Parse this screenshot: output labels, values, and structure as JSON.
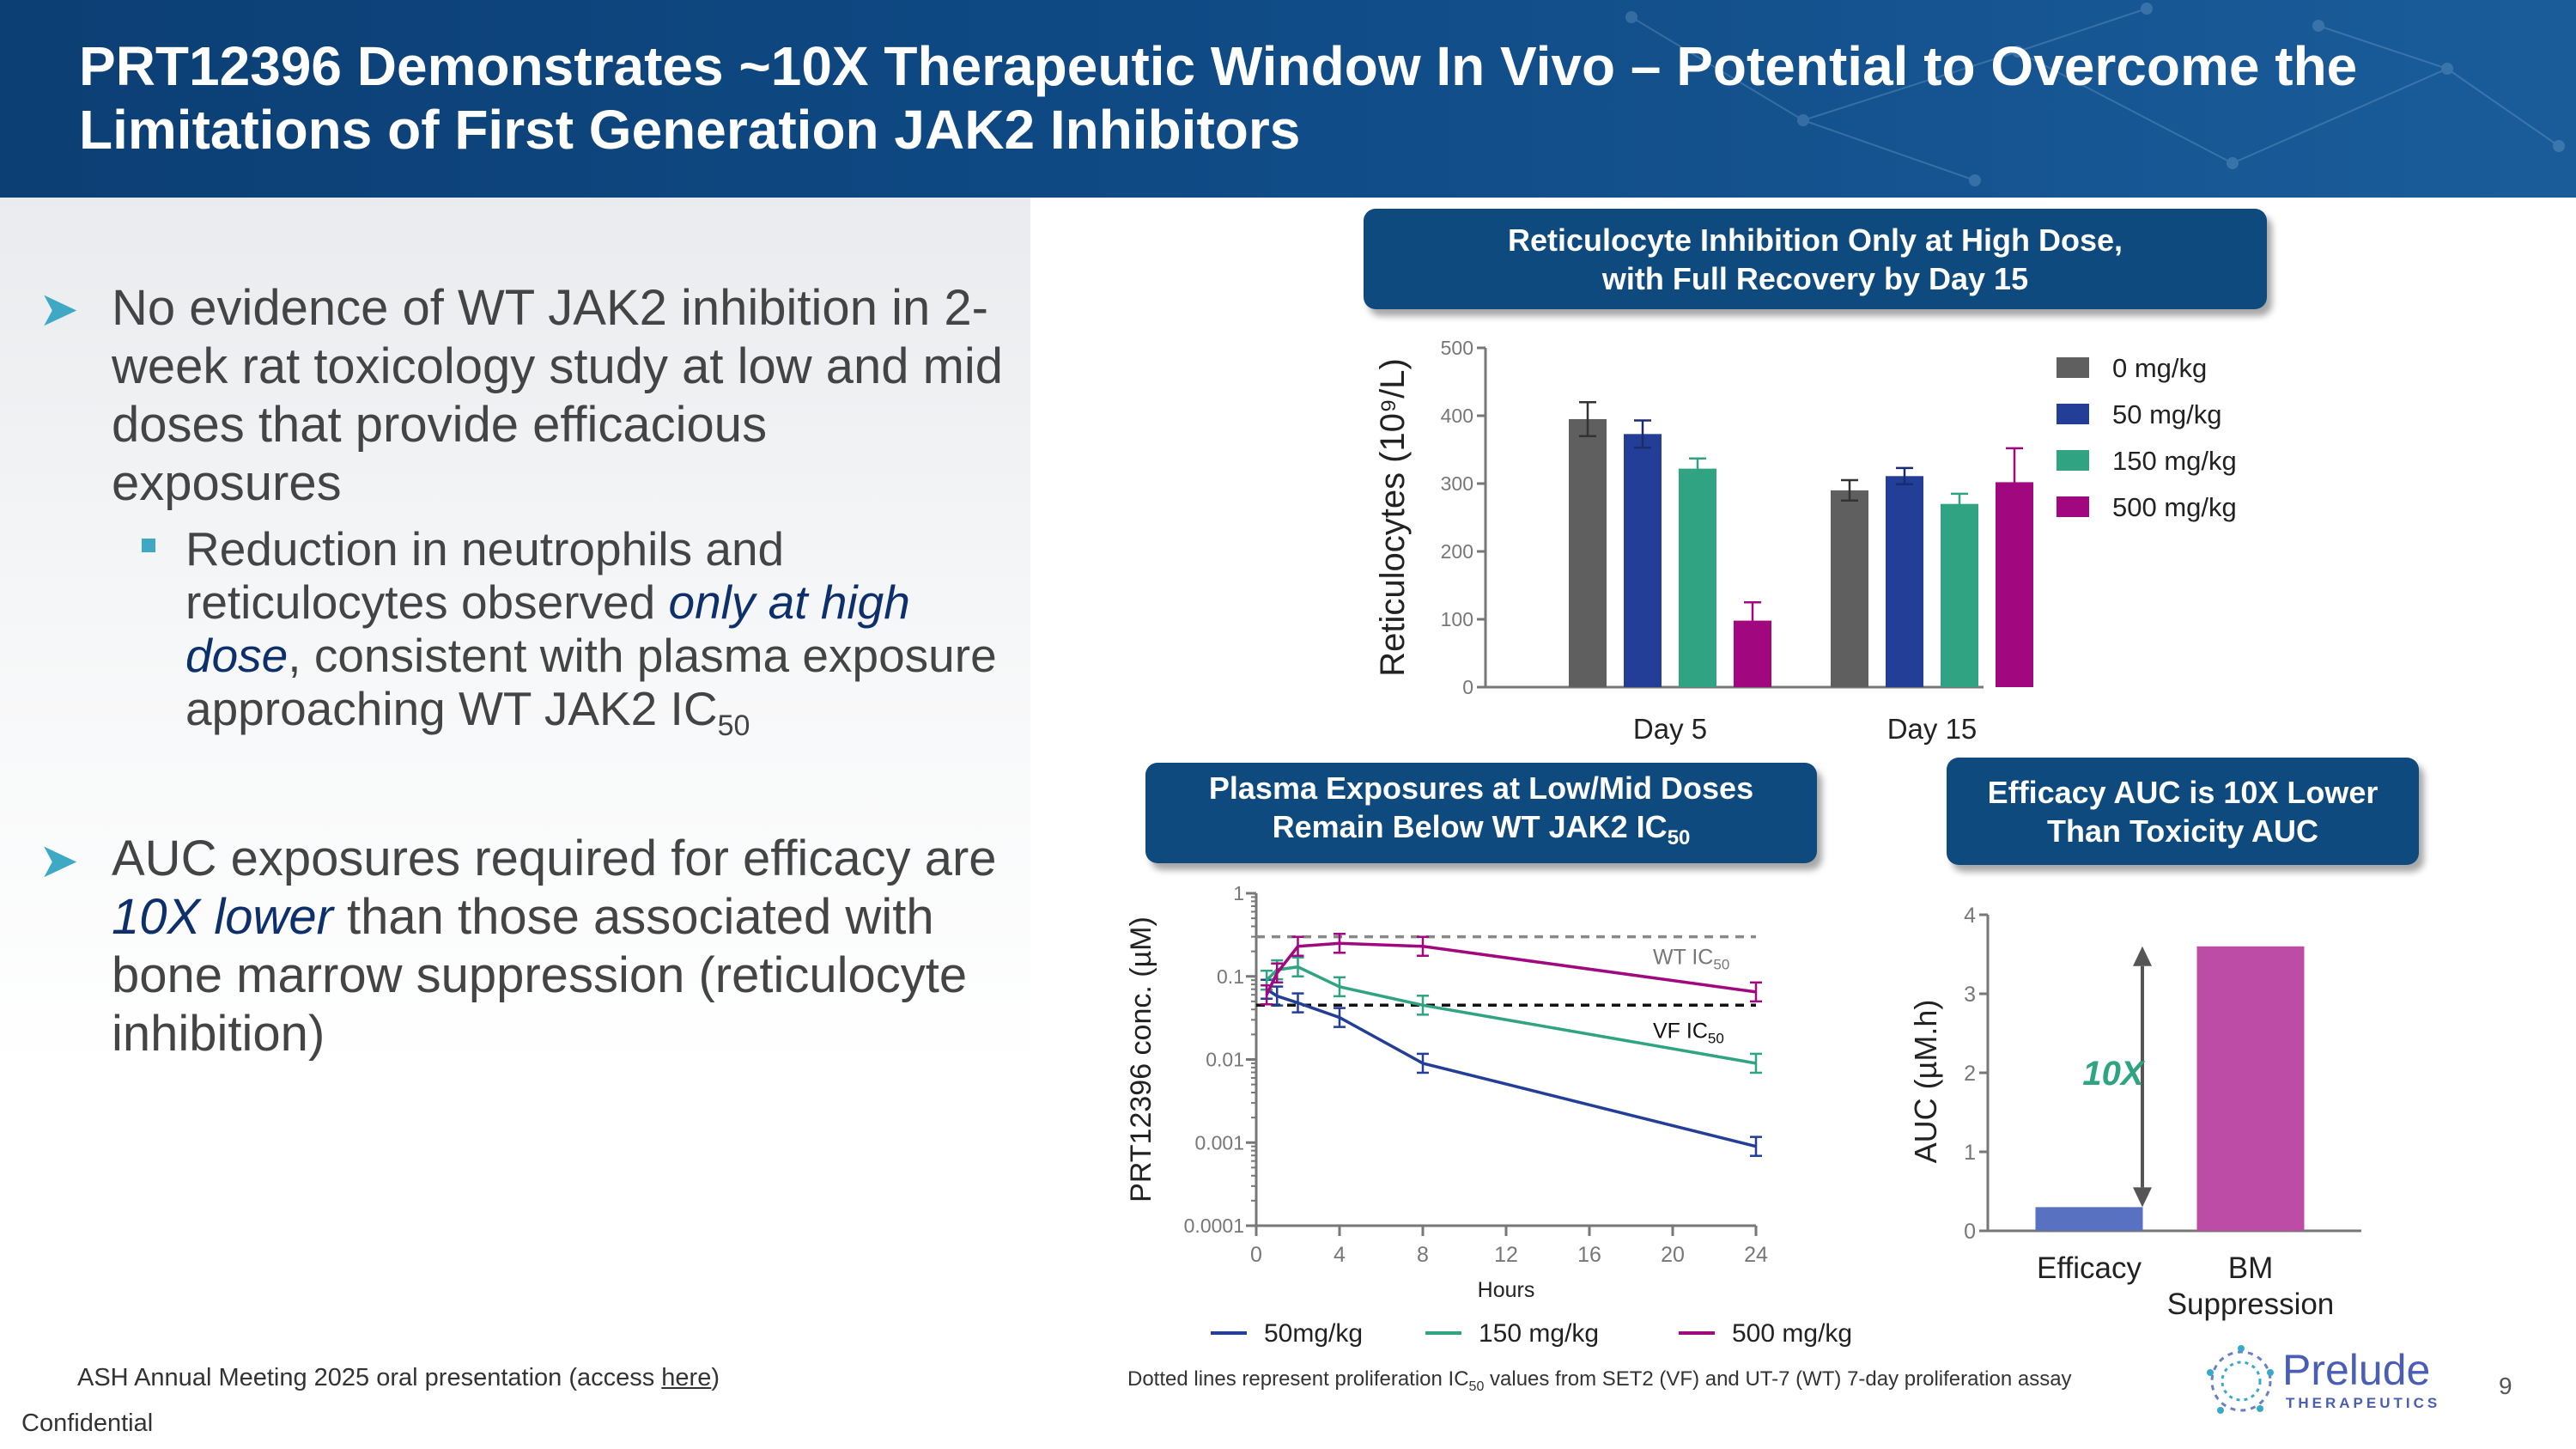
{
  "header": {
    "title": "PRT12396 Demonstrates ~10X Therapeutic Window In Vivo – Potential to Overcome the Limitations of First Generation JAK2 Inhibitors"
  },
  "bullets": {
    "b1": "No evidence of WT JAK2 inhibition in 2-week rat toxicology study at low and mid doses that provide efficacious exposures",
    "sub1_a": "Reduction in neutrophils and reticulocytes observed ",
    "sub1_em": "only at high dose",
    "sub1_b": ", consistent with plasma exposure approaching WT JAK2 IC",
    "sub1_sub": "50",
    "b2_a": "AUC exposures required for efficacy are ",
    "b2_em": "10X lower",
    "b2_b": " than those associated with bone marrow suppression (reticulocyte inhibition)"
  },
  "callouts": {
    "reticulocyte": [
      "Reticulocyte Inhibition Only at High Dose,",
      "with Full Recovery by Day 15"
    ],
    "plasma_line1": "Plasma Exposures at Low/Mid Doses",
    "plasma_line2": "Remain Below WT JAK2 IC",
    "plasma_sub": "50",
    "auc": [
      "Efficacy AUC is 10X Lower",
      "Than Toxicity AUC"
    ]
  },
  "footer": {
    "source_prefix": "ASH Annual Meeting 2025 oral presentation (access ",
    "source_link": "here",
    "source_suffix": ")",
    "confidential": "Confidential",
    "page_number": "9",
    "note_a": "Dotted lines represent proliferation IC",
    "note_sub": "50",
    "note_b": " values from SET2 (VF) and UT-7 (WT) 7-day proliferation assay"
  },
  "logo": {
    "name": "Prelude",
    "tagline": "THERAPEUTICS"
  },
  "colors": {
    "header": "#0f4a85",
    "callout": "#0e4a7e",
    "bullet_accent": "#3fa9c5",
    "dark_gray": "#5f5f5f",
    "navy": "#233e96",
    "teal": "#2fa382",
    "magenta": "#a1077f",
    "efficacy": "#5871c0",
    "bm": "#bd4ca7"
  },
  "chart_data": [
    {
      "type": "bar",
      "ylabel": "Reticulocytes (10⁹/L)",
      "ylim": [
        0,
        500
      ],
      "yticks": [
        "0",
        "100",
        "200",
        "300",
        "400",
        "500"
      ],
      "categories": [
        "Day 5",
        "Day 15"
      ],
      "legend_position": "right",
      "series": [
        {
          "name": "0 mg/kg",
          "values": [
            395,
            290
          ],
          "errors": [
            25,
            15
          ]
        },
        {
          "name": "50 mg/kg",
          "values": [
            373,
            311
          ],
          "errors": [
            20,
            12
          ]
        },
        {
          "name": "150 mg/kg",
          "values": [
            322,
            270
          ],
          "errors": [
            15,
            15
          ]
        },
        {
          "name": "500 mg/kg",
          "values": [
            98,
            302
          ],
          "errors": [
            27,
            50
          ]
        }
      ]
    },
    {
      "type": "line",
      "xlabel": "Hours",
      "ylabel": "PRT12396 conc. (µM)",
      "xlim": [
        0,
        24
      ],
      "xticks": [
        "0",
        "4",
        "8",
        "12",
        "16",
        "20",
        "24"
      ],
      "yscale": "log",
      "ylim": [
        0.0001,
        1
      ],
      "yticks": [
        "0.0001",
        "0.001",
        "0.01",
        "0.1",
        "1"
      ],
      "legend_position": "bottom",
      "series": [
        {
          "name": "50mg/kg",
          "x": [
            0.5,
            1,
            2,
            4,
            8,
            24
          ],
          "y": [
            0.07,
            0.058,
            0.048,
            0.032,
            0.009,
            0.0009
          ]
        },
        {
          "name": "150 mg/kg",
          "x": [
            0.5,
            1,
            2,
            4,
            8,
            24
          ],
          "y": [
            0.09,
            0.12,
            0.13,
            0.075,
            0.045,
            0.009
          ]
        },
        {
          "name": "500 mg/kg",
          "x": [
            0.5,
            1,
            2,
            4,
            8,
            24
          ],
          "y": [
            0.06,
            0.11,
            0.23,
            0.25,
            0.23,
            0.065
          ]
        }
      ],
      "reference_lines": [
        {
          "label": "WT IC",
          "label_sub": "50",
          "y": 0.3
        },
        {
          "label": "VF IC",
          "label_sub": "50",
          "y": 0.045
        }
      ]
    },
    {
      "type": "bar",
      "ylabel": "AUC (µM.h)",
      "ylim": [
        0,
        4
      ],
      "yticks": [
        "0",
        "1",
        "2",
        "3",
        "4"
      ],
      "categories": [
        "Efficacy",
        "BM Suppression"
      ],
      "values": [
        0.3,
        3.6
      ],
      "annotation": "10X"
    }
  ]
}
